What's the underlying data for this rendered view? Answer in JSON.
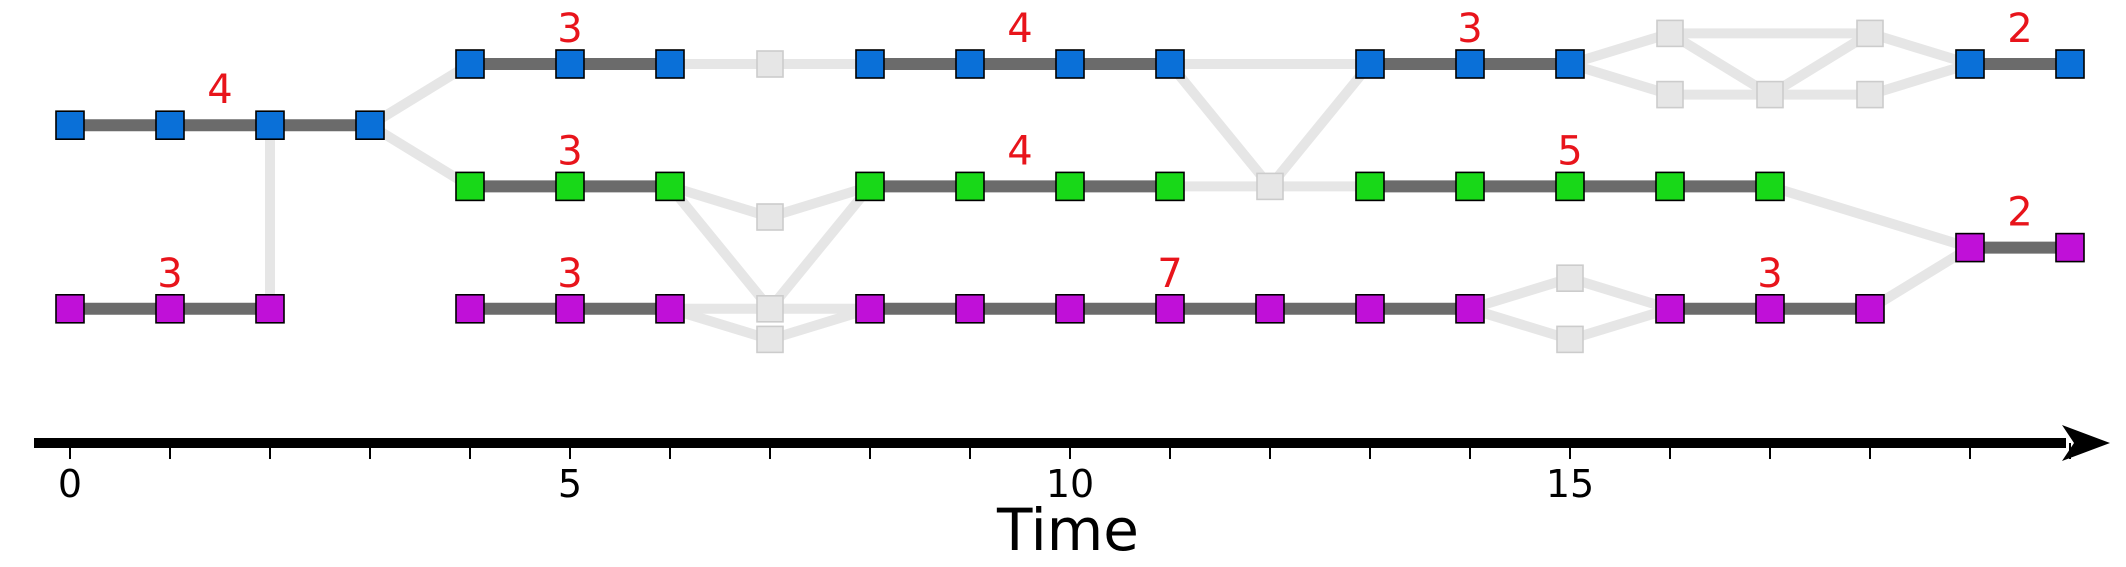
{
  "chart_data": {
    "type": "diagram",
    "xlabel": "Time",
    "x_ticks": [
      0,
      5,
      10,
      15
    ],
    "x_range": [
      0,
      20
    ],
    "colors": {
      "blue": "#0a70d8",
      "green": "#18d818",
      "purple": "#c010d8",
      "gap": "#e6e6e6",
      "segment": "#6b6b6b",
      "label": "#e8141b"
    },
    "lanes": [
      {
        "id": "L0",
        "nodes": [
          {
            "t": 4
          },
          {
            "t": 5
          },
          {
            "t": 6
          },
          {
            "t": 8
          },
          {
            "t": 9
          },
          {
            "t": 10
          },
          {
            "t": 11
          },
          {
            "t": 13
          },
          {
            "t": 14
          },
          {
            "t": 15
          },
          {
            "t": 19
          },
          {
            "t": 20
          }
        ]
      },
      {
        "id": "L1",
        "nodes": [
          {
            "t": 0
          },
          {
            "t": 1
          },
          {
            "t": 2
          },
          {
            "t": 3
          }
        ]
      },
      {
        "id": "L2",
        "nodes": [
          {
            "t": 4
          },
          {
            "t": 5
          },
          {
            "t": 6
          },
          {
            "t": 8
          },
          {
            "t": 9
          },
          {
            "t": 10
          },
          {
            "t": 11
          },
          {
            "t": 13
          },
          {
            "t": 14
          },
          {
            "t": 15
          },
          {
            "t": 16
          },
          {
            "t": 17
          }
        ]
      },
      {
        "id": "L3",
        "nodes": [
          {
            "t": 19
          },
          {
            "t": 20
          }
        ]
      },
      {
        "id": "L4",
        "nodes": [
          {
            "t": 0
          },
          {
            "t": 1
          },
          {
            "t": 2
          },
          {
            "t": 4
          },
          {
            "t": 5
          },
          {
            "t": 6
          },
          {
            "t": 8
          },
          {
            "t": 9
          },
          {
            "t": 10
          },
          {
            "t": 11
          },
          {
            "t": 12
          },
          {
            "t": 13
          },
          {
            "t": 14
          },
          {
            "t": 16
          },
          {
            "t": 17
          },
          {
            "t": 18
          }
        ]
      }
    ],
    "segments": [
      {
        "color": "blue",
        "lane": 1,
        "t0": 0,
        "t1": 3,
        "label": "4"
      },
      {
        "color": "blue",
        "lane": 0,
        "t0": 4,
        "t1": 6,
        "label": "3"
      },
      {
        "color": "blue",
        "lane": 0,
        "t0": 8,
        "t1": 11,
        "label": "4"
      },
      {
        "color": "blue",
        "lane": 0,
        "t0": 13,
        "t1": 15,
        "label": "3"
      },
      {
        "color": "blue",
        "lane": 0,
        "t0": 19,
        "t1": 20,
        "label": "2"
      },
      {
        "color": "green",
        "lane": 2,
        "t0": 4,
        "t1": 6,
        "label": "3"
      },
      {
        "color": "green",
        "lane": 2,
        "t0": 8,
        "t1": 11,
        "label": "4"
      },
      {
        "color": "green",
        "lane": 2,
        "t0": 13,
        "t1": 17,
        "label": "5"
      },
      {
        "color": "purple",
        "lane": 4,
        "t0": 0,
        "t1": 2,
        "label": "3"
      },
      {
        "color": "purple",
        "lane": 4,
        "t0": 4,
        "t1": 6,
        "label": "3"
      },
      {
        "color": "purple",
        "lane": 4,
        "t0": 8,
        "t1": 14,
        "label": "7"
      },
      {
        "color": "purple",
        "lane": 4,
        "t0": 16,
        "t1": 18,
        "label": "3"
      },
      {
        "color": "purple",
        "lane": 3,
        "t0": 19,
        "t1": 20,
        "label": "2"
      }
    ],
    "gap_nodes": [
      {
        "t": 7,
        "lane": 0
      },
      {
        "t": 7,
        "lane": 2.5
      },
      {
        "t": 7,
        "lane": 4
      },
      {
        "t": 7,
        "lane": 4.5
      },
      {
        "t": 12,
        "lane": 2
      },
      {
        "t": 15,
        "lane": 3.5
      },
      {
        "t": 15,
        "lane": 4.5
      },
      {
        "t": 16,
        "lane": -0.5
      },
      {
        "t": 16,
        "lane": 0.5
      },
      {
        "t": 17,
        "lane": 0.5
      },
      {
        "t": 18,
        "lane": -0.5
      },
      {
        "t": 18,
        "lane": 0.5
      }
    ],
    "gap_links": [
      {
        "a": [
          2,
          1
        ],
        "b": [
          2,
          4
        ]
      },
      {
        "a": [
          6,
          0
        ],
        "b": [
          8,
          0
        ]
      },
      {
        "a": [
          11,
          0
        ],
        "b": [
          13,
          0
        ]
      },
      {
        "a": [
          11,
          2
        ],
        "b": [
          13,
          2
        ]
      },
      {
        "a": [
          11,
          0
        ],
        "b": [
          12,
          2
        ]
      },
      {
        "a": [
          12,
          2
        ],
        "b": [
          13,
          0
        ]
      },
      {
        "a": [
          3,
          1
        ],
        "b": [
          4,
          0
        ]
      },
      {
        "a": [
          3,
          1
        ],
        "b": [
          4,
          2
        ]
      },
      {
        "a": [
          6,
          2
        ],
        "b": [
          7,
          2.5
        ]
      },
      {
        "a": [
          7,
          2.5
        ],
        "b": [
          8,
          2
        ]
      },
      {
        "a": [
          6,
          2
        ],
        "b": [
          7,
          4
        ]
      },
      {
        "a": [
          6,
          4
        ],
        "b": [
          7,
          4
        ]
      },
      {
        "a": [
          7,
          4
        ],
        "b": [
          8,
          2
        ]
      },
      {
        "a": [
          7,
          4
        ],
        "b": [
          8,
          4
        ]
      },
      {
        "a": [
          6,
          4
        ],
        "b": [
          7,
          4.5
        ]
      },
      {
        "a": [
          7,
          4.5
        ],
        "b": [
          8,
          4
        ]
      },
      {
        "a": [
          14,
          4
        ],
        "b": [
          15,
          3.5
        ]
      },
      {
        "a": [
          15,
          3.5
        ],
        "b": [
          16,
          4
        ]
      },
      {
        "a": [
          14,
          4
        ],
        "b": [
          15,
          4.5
        ]
      },
      {
        "a": [
          15,
          4.5
        ],
        "b": [
          16,
          4
        ]
      },
      {
        "a": [
          15,
          0
        ],
        "b": [
          16,
          -0.5
        ]
      },
      {
        "a": [
          15,
          0
        ],
        "b": [
          16,
          0.5
        ]
      },
      {
        "a": [
          16,
          -0.5
        ],
        "b": [
          18,
          -0.5
        ]
      },
      {
        "a": [
          16,
          0.5
        ],
        "b": [
          18,
          0.5
        ]
      },
      {
        "a": [
          16,
          -0.5
        ],
        "b": [
          17,
          0.5
        ]
      },
      {
        "a": [
          17,
          0.5
        ],
        "b": [
          18,
          -0.5
        ]
      },
      {
        "a": [
          18,
          -0.5
        ],
        "b": [
          19,
          0
        ]
      },
      {
        "a": [
          18,
          0.5
        ],
        "b": [
          19,
          0
        ]
      },
      {
        "a": [
          17,
          2
        ],
        "b": [
          19,
          3
        ]
      },
      {
        "a": [
          18,
          4
        ],
        "b": [
          19,
          3
        ]
      }
    ]
  }
}
